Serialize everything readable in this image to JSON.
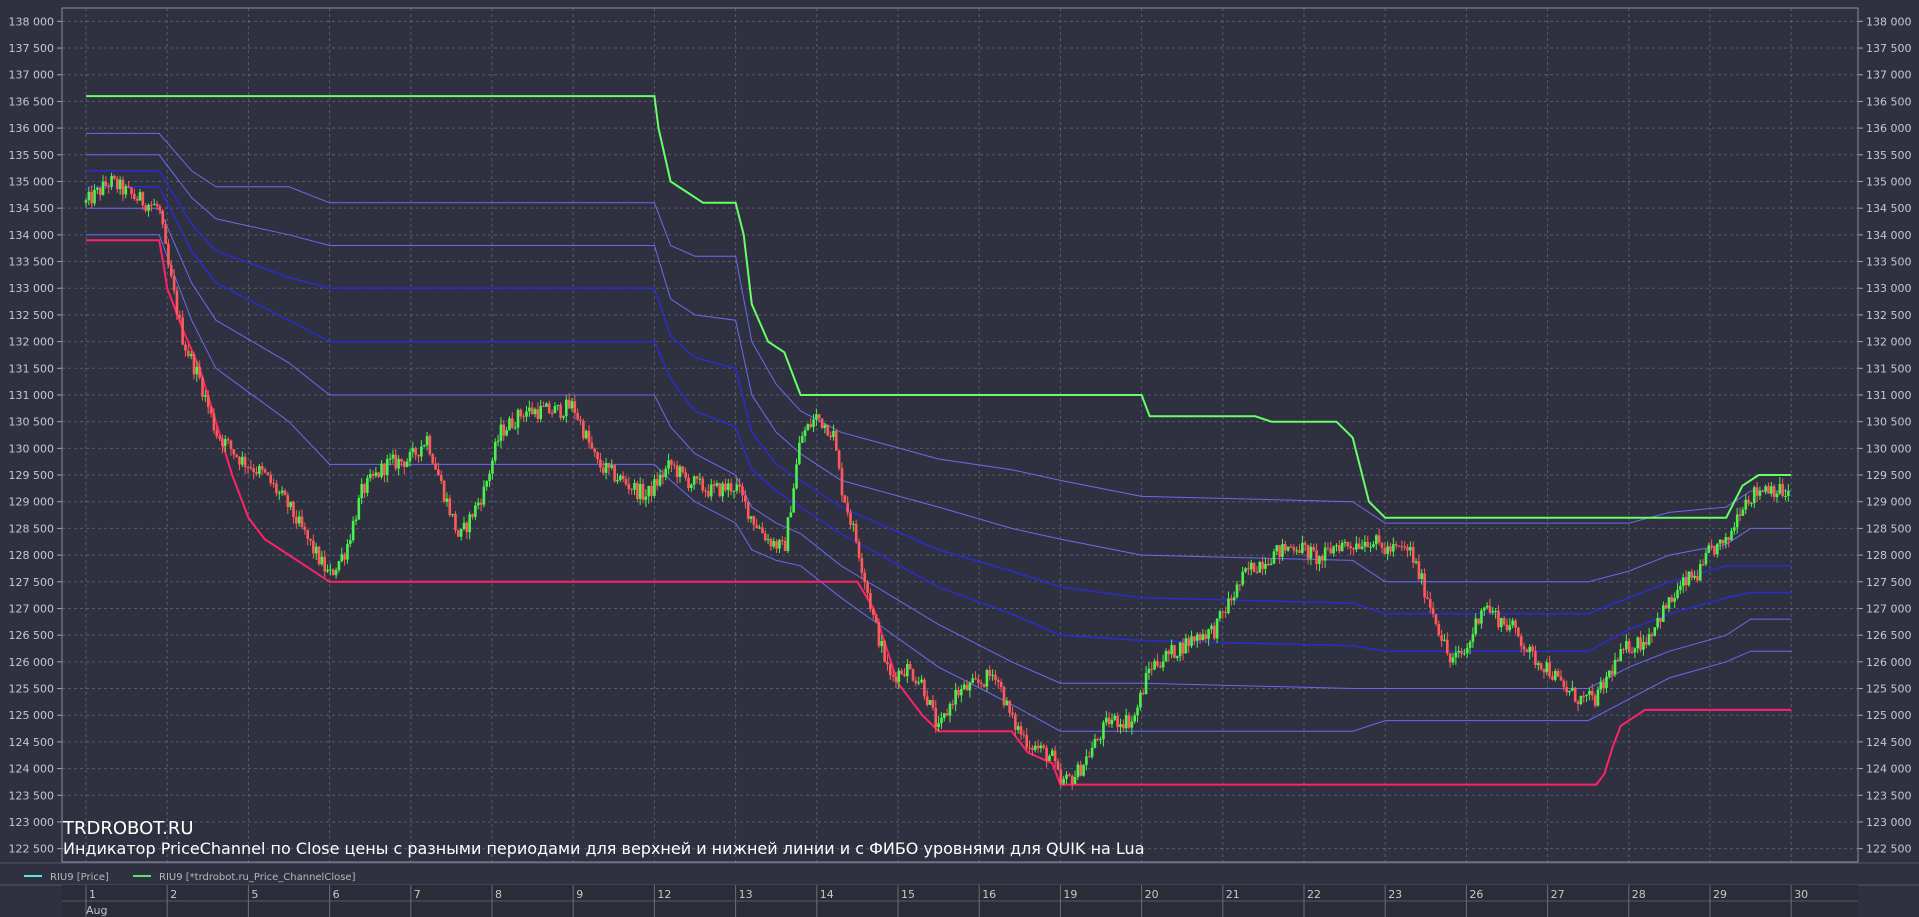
{
  "watermark": {
    "title": "TRDROBOT.RU",
    "subtitle": "Индикатор PriceChannel по Close цены с разными периодами для верхней и нижней линии и с ФИБО уровнями для QUIK на Lua"
  },
  "legend": [
    {
      "label": "RIU9 [Price]",
      "color": "#5ce6e6"
    },
    {
      "label": "RIU9 [*trdrobot.ru_Price_ChannelClose]",
      "color": "#5ce65c"
    }
  ],
  "colors": {
    "background": "#2f3140",
    "grid": "#7a7d8c",
    "bull": "#4cf04c",
    "bear": "#ff5a5a",
    "upper_line": "#66ff66",
    "lower_line": "#ff2266",
    "fibo_dark": "#2b2bd6",
    "fibo_light": "#6a6af0"
  },
  "chart_data": {
    "type": "candlestick",
    "instrument": "RIU9",
    "ylim": [
      122250,
      138250
    ],
    "yticks": [
      "138 000",
      "137 500",
      "137 000",
      "136 500",
      "136 000",
      "135 500",
      "135 000",
      "134 500",
      "134 000",
      "133 500",
      "133 000",
      "132 500",
      "132 000",
      "131 500",
      "131 000",
      "130 500",
      "130 000",
      "129 500",
      "129 000",
      "128 500",
      "128 000",
      "127 500",
      "127 000",
      "126 500",
      "126 000",
      "125 500",
      "125 000",
      "124 500",
      "124 000",
      "123 500",
      "123 000",
      "122 500"
    ],
    "month_label": "Aug",
    "days": [
      "1",
      "2",
      "5",
      "6",
      "7",
      "8",
      "9",
      "12",
      "13",
      "14",
      "15",
      "16",
      "19",
      "20",
      "21",
      "22",
      "23",
      "26",
      "27",
      "28",
      "29",
      "30"
    ],
    "close_path": [
      [
        0,
        134600
      ],
      [
        0.3,
        135000
      ],
      [
        0.6,
        134700
      ],
      [
        0.9,
        134500
      ],
      [
        1.0,
        133500
      ],
      [
        1.2,
        132000
      ],
      [
        1.4,
        131300
      ],
      [
        1.6,
        130300
      ],
      [
        1.9,
        129800
      ],
      [
        2.2,
        129500
      ],
      [
        2.5,
        128900
      ],
      [
        2.8,
        128100
      ],
      [
        3.0,
        127600
      ],
      [
        3.2,
        128100
      ],
      [
        3.4,
        129200
      ],
      [
        3.7,
        129700
      ],
      [
        4.0,
        129800
      ],
      [
        4.2,
        130200
      ],
      [
        4.4,
        129200
      ],
      [
        4.6,
        128300
      ],
      [
        4.9,
        129200
      ],
      [
        5.1,
        130300
      ],
      [
        5.4,
        130700
      ],
      [
        5.8,
        130700
      ],
      [
        6.0,
        130800
      ],
      [
        6.3,
        129700
      ],
      [
        6.6,
        129400
      ],
      [
        6.9,
        129100
      ],
      [
        7.2,
        129700
      ],
      [
        7.4,
        129400
      ],
      [
        7.7,
        129200
      ],
      [
        8.0,
        129300
      ],
      [
        8.2,
        128700
      ],
      [
        8.4,
        128300
      ],
      [
        8.6,
        128100
      ],
      [
        8.8,
        130200
      ],
      [
        9.0,
        130600
      ],
      [
        9.2,
        130300
      ],
      [
        9.3,
        129300
      ],
      [
        9.5,
        128200
      ],
      [
        9.7,
        126800
      ],
      [
        9.9,
        125700
      ],
      [
        10.1,
        125900
      ],
      [
        10.3,
        125600
      ],
      [
        10.5,
        124700
      ],
      [
        10.7,
        125400
      ],
      [
        11.0,
        125600
      ],
      [
        11.2,
        125800
      ],
      [
        11.4,
        124900
      ],
      [
        11.6,
        124500
      ],
      [
        11.9,
        124200
      ],
      [
        12.0,
        123700
      ],
      [
        12.2,
        123900
      ],
      [
        12.4,
        124400
      ],
      [
        12.6,
        124900
      ],
      [
        12.9,
        124900
      ],
      [
        13.1,
        125900
      ],
      [
        13.4,
        126200
      ],
      [
        13.7,
        126500
      ],
      [
        13.9,
        126600
      ],
      [
        14.0,
        126900
      ],
      [
        14.3,
        127700
      ],
      [
        14.6,
        128000
      ],
      [
        14.9,
        128200
      ],
      [
        15.2,
        127900
      ],
      [
        15.4,
        128200
      ],
      [
        15.6,
        128200
      ],
      [
        15.8,
        128300
      ],
      [
        16.0,
        128100
      ],
      [
        16.3,
        128100
      ],
      [
        16.5,
        127300
      ],
      [
        16.6,
        126900
      ],
      [
        16.8,
        126000
      ],
      [
        17.0,
        126200
      ],
      [
        17.2,
        127100
      ],
      [
        17.4,
        126800
      ],
      [
        17.6,
        126600
      ],
      [
        17.8,
        126100
      ],
      [
        18.0,
        125900
      ],
      [
        18.2,
        125500
      ],
      [
        18.4,
        125300
      ],
      [
        18.6,
        125300
      ],
      [
        18.8,
        125900
      ],
      [
        19.0,
        126300
      ],
      [
        19.2,
        126400
      ],
      [
        19.4,
        126900
      ],
      [
        19.7,
        127500
      ],
      [
        19.9,
        127700
      ],
      [
        20.0,
        128100
      ],
      [
        20.2,
        128200
      ],
      [
        20.4,
        129000
      ],
      [
        20.7,
        129300
      ],
      [
        21.0,
        129100
      ]
    ],
    "upper_channel": [
      [
        0,
        136600
      ],
      [
        7.0,
        136600
      ],
      [
        7.05,
        136000
      ],
      [
        7.2,
        135000
      ],
      [
        7.4,
        134800
      ],
      [
        7.6,
        134600
      ],
      [
        8.0,
        134600
      ],
      [
        8.1,
        134000
      ],
      [
        8.2,
        132700
      ],
      [
        8.4,
        132000
      ],
      [
        8.6,
        131800
      ],
      [
        8.8,
        131000
      ],
      [
        13.0,
        131000
      ],
      [
        13.1,
        130600
      ],
      [
        14.4,
        130600
      ],
      [
        14.6,
        130500
      ],
      [
        15.4,
        130500
      ],
      [
        15.6,
        130200
      ],
      [
        15.8,
        129000
      ],
      [
        16.0,
        128700
      ],
      [
        20.2,
        128700
      ],
      [
        20.4,
        129300
      ],
      [
        20.6,
        129500
      ],
      [
        21.0,
        129500
      ]
    ],
    "lower_channel": [
      [
        0,
        133900
      ],
      [
        0.9,
        133900
      ],
      [
        0.95,
        133500
      ],
      [
        1.0,
        133000
      ],
      [
        1.2,
        132200
      ],
      [
        1.4,
        131500
      ],
      [
        1.6,
        130500
      ],
      [
        1.8,
        129500
      ],
      [
        2.0,
        128700
      ],
      [
        2.2,
        128300
      ],
      [
        2.5,
        128000
      ],
      [
        2.8,
        127700
      ],
      [
        3.0,
        127500
      ],
      [
        9.5,
        127500
      ],
      [
        9.7,
        127000
      ],
      [
        10.0,
        125600
      ],
      [
        10.3,
        125000
      ],
      [
        10.5,
        124700
      ],
      [
        11.4,
        124700
      ],
      [
        11.6,
        124300
      ],
      [
        11.9,
        124100
      ],
      [
        12.0,
        123700
      ],
      [
        18.6,
        123700
      ],
      [
        18.7,
        123900
      ],
      [
        18.8,
        124400
      ],
      [
        18.9,
        124800
      ],
      [
        19.1,
        125000
      ],
      [
        19.2,
        125100
      ],
      [
        21.0,
        125100
      ]
    ],
    "fibo_levels": [
      [
        [
          0,
          135900
        ],
        [
          0.9,
          135900
        ],
        [
          1.3,
          135200
        ],
        [
          1.6,
          134900
        ],
        [
          2.5,
          134900
        ],
        [
          3.0,
          134600
        ],
        [
          7.0,
          134600
        ],
        [
          7.2,
          133800
        ],
        [
          7.5,
          133600
        ],
        [
          8.0,
          133600
        ],
        [
          8.2,
          132000
        ],
        [
          8.5,
          131200
        ],
        [
          8.8,
          130700
        ],
        [
          9.3,
          130300
        ],
        [
          10.5,
          129800
        ],
        [
          11.4,
          129600
        ],
        [
          12.0,
          129400
        ],
        [
          13.0,
          129100
        ],
        [
          15.6,
          129000
        ],
        [
          16.0,
          128600
        ],
        [
          19.0,
          128600
        ],
        [
          19.5,
          128800
        ],
        [
          20.2,
          128900
        ],
        [
          20.5,
          129200
        ],
        [
          21.0,
          129200
        ]
      ],
      [
        [
          0,
          135500
        ],
        [
          0.9,
          135500
        ],
        [
          1.3,
          134700
        ],
        [
          1.6,
          134300
        ],
        [
          2.5,
          134000
        ],
        [
          3.0,
          133800
        ],
        [
          7.0,
          133800
        ],
        [
          7.2,
          132800
        ],
        [
          7.5,
          132500
        ],
        [
          8.0,
          132400
        ],
        [
          8.2,
          131000
        ],
        [
          8.5,
          130300
        ],
        [
          8.8,
          129900
        ],
        [
          9.3,
          129400
        ],
        [
          10.5,
          128900
        ],
        [
          11.4,
          128500
        ],
        [
          12.0,
          128300
        ],
        [
          13.0,
          128000
        ],
        [
          15.6,
          127900
        ],
        [
          16.0,
          127500
        ],
        [
          18.5,
          127500
        ],
        [
          19.0,
          127700
        ],
        [
          19.5,
          128000
        ],
        [
          20.2,
          128200
        ],
        [
          20.5,
          128500
        ],
        [
          21.0,
          128500
        ]
      ],
      [
        [
          0,
          135200
        ],
        [
          0.9,
          135200
        ],
        [
          1.3,
          134200
        ],
        [
          1.6,
          133700
        ],
        [
          2.5,
          133200
        ],
        [
          3.0,
          133000
        ],
        [
          7.0,
          133000
        ],
        [
          7.2,
          132100
        ],
        [
          7.5,
          131700
        ],
        [
          8.0,
          131500
        ],
        [
          8.2,
          130300
        ],
        [
          8.5,
          129700
        ],
        [
          8.8,
          129400
        ],
        [
          9.3,
          128900
        ],
        [
          10.5,
          128100
        ],
        [
          11.4,
          127700
        ],
        [
          12.0,
          127400
        ],
        [
          13.0,
          127200
        ],
        [
          15.6,
          127100
        ],
        [
          16.0,
          126900
        ],
        [
          18.5,
          126900
        ],
        [
          19.0,
          127200
        ],
        [
          19.5,
          127500
        ],
        [
          20.2,
          127800
        ],
        [
          20.5,
          127800
        ],
        [
          21.0,
          127800
        ]
      ],
      [
        [
          0,
          134900
        ],
        [
          0.9,
          134900
        ],
        [
          1.3,
          133700
        ],
        [
          1.6,
          133100
        ],
        [
          2.5,
          132400
        ],
        [
          3.0,
          132000
        ],
        [
          7.0,
          132000
        ],
        [
          7.2,
          131300
        ],
        [
          7.5,
          130700
        ],
        [
          8.0,
          130400
        ],
        [
          8.2,
          129600
        ],
        [
          8.5,
          129200
        ],
        [
          8.8,
          128900
        ],
        [
          9.3,
          128400
        ],
        [
          10.5,
          127400
        ],
        [
          11.4,
          126900
        ],
        [
          12.0,
          126500
        ],
        [
          13.0,
          126400
        ],
        [
          15.6,
          126300
        ],
        [
          16.0,
          126200
        ],
        [
          18.5,
          126200
        ],
        [
          19.0,
          126600
        ],
        [
          19.5,
          126900
        ],
        [
          20.2,
          127200
        ],
        [
          20.5,
          127300
        ],
        [
          21.0,
          127300
        ]
      ],
      [
        [
          0,
          134500
        ],
        [
          0.9,
          134500
        ],
        [
          1.3,
          133100
        ],
        [
          1.6,
          132400
        ],
        [
          2.5,
          131600
        ],
        [
          3.0,
          131000
        ],
        [
          7.0,
          131000
        ],
        [
          7.2,
          130400
        ],
        [
          7.5,
          129900
        ],
        [
          8.0,
          129500
        ],
        [
          8.2,
          128900
        ],
        [
          8.5,
          128600
        ],
        [
          8.8,
          128400
        ],
        [
          9.3,
          127800
        ],
        [
          10.5,
          126700
        ],
        [
          11.4,
          126000
        ],
        [
          12.0,
          125600
        ],
        [
          13.0,
          125600
        ],
        [
          15.6,
          125500
        ],
        [
          16.0,
          125500
        ],
        [
          18.5,
          125500
        ],
        [
          19.0,
          125900
        ],
        [
          19.5,
          126200
        ],
        [
          20.2,
          126500
        ],
        [
          20.5,
          126800
        ],
        [
          21.0,
          126800
        ]
      ],
      [
        [
          0,
          134000
        ],
        [
          0.9,
          134000
        ],
        [
          1.3,
          132400
        ],
        [
          1.6,
          131500
        ],
        [
          2.5,
          130500
        ],
        [
          3.0,
          129700
        ],
        [
          7.0,
          129700
        ],
        [
          7.2,
          129400
        ],
        [
          7.5,
          129000
        ],
        [
          8.0,
          128600
        ],
        [
          8.2,
          128100
        ],
        [
          8.5,
          127900
        ],
        [
          8.8,
          127800
        ],
        [
          9.3,
          127200
        ],
        [
          10.5,
          125900
        ],
        [
          11.4,
          125200
        ],
        [
          12.0,
          124700
        ],
        [
          13.0,
          124700
        ],
        [
          15.6,
          124700
        ],
        [
          16.0,
          124900
        ],
        [
          18.5,
          124900
        ],
        [
          19.0,
          125300
        ],
        [
          19.5,
          125700
        ],
        [
          20.2,
          126000
        ],
        [
          20.5,
          126200
        ],
        [
          21.0,
          126200
        ]
      ]
    ]
  }
}
